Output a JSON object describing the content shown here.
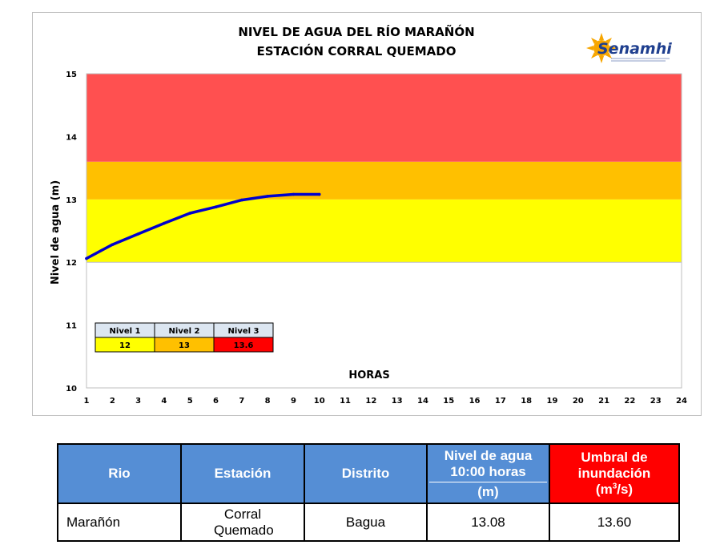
{
  "chart_data": {
    "type": "line",
    "title": "NIVEL DE AGUA DEL RÍO MARAÑÓN",
    "subtitle": "ESTACIÓN CORRAL QUEMADO",
    "xlabel": "HORAS",
    "ylabel": "Nivel de agua  (m)",
    "xlim": [
      1,
      24
    ],
    "ylim": [
      10,
      15
    ],
    "x_ticks": [
      "1",
      "2",
      "3",
      "4",
      "5",
      "6",
      "7",
      "8",
      "9",
      "10",
      "11",
      "12",
      "13",
      "14",
      "15",
      "16",
      "17",
      "18",
      "19",
      "20",
      "21",
      "22",
      "23",
      "24"
    ],
    "y_ticks": [
      "10",
      "11",
      "12",
      "13",
      "14",
      "15"
    ],
    "bands": [
      {
        "from": 12,
        "to": 13,
        "color": "#ffff00"
      },
      {
        "from": 13,
        "to": 13.6,
        "color": "#ffc000"
      },
      {
        "from": 13.6,
        "to": 15,
        "color": "#ff5050"
      }
    ],
    "series": [
      {
        "color": "#0000cc",
        "x": [
          1,
          2,
          3,
          4,
          5,
          6,
          7,
          8,
          9,
          10
        ],
        "values": [
          12.06,
          12.28,
          12.45,
          12.62,
          12.78,
          12.88,
          12.99,
          13.05,
          13.08,
          13.08
        ]
      }
    ],
    "levels_table": {
      "headers": [
        "Nivel 1",
        "Nivel 2",
        "Nivel 3"
      ],
      "values": [
        "12",
        "13",
        "13.6"
      ],
      "colors": [
        "#ffff00",
        "#ffc000",
        "#ff0000"
      ]
    },
    "logo_text": "Senamhi"
  },
  "table": {
    "headers": {
      "rio": "Rio",
      "estacion": "Estación",
      "distrito": "Distrito",
      "nivel_top": "Nivel de agua 10:00 horas",
      "nivel_unit": "(m)",
      "umbral_line1": "Umbral de inundación",
      "umbral_unit": "(m",
      "umbral_sup": "3",
      "umbral_unit_end": "/s)"
    },
    "row": {
      "rio": "Marañón",
      "estacion": "Corral Quemado",
      "distrito": "Bagua",
      "nivel": "13.08",
      "umbral": "13.60"
    }
  }
}
